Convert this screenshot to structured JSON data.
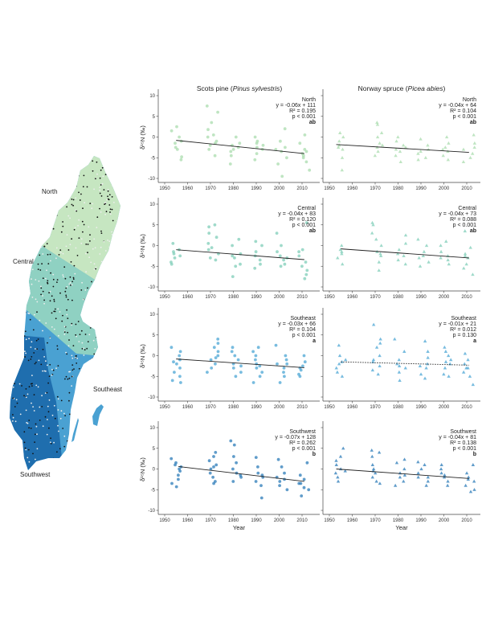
{
  "column_titles": [
    {
      "plain": "Scots pine (",
      "italic": "Pinus sylvestris",
      "close": ")"
    },
    {
      "plain": "Norway spruce (",
      "italic": "Picea abies",
      "close": ")"
    }
  ],
  "map": {
    "region_labels": [
      "North",
      "Central",
      "Southeast",
      "Southwest"
    ],
    "colors": {
      "North": "#c6e6c1",
      "Central": "#8fd1c2",
      "Southeast": "#4aa1d2",
      "Southwest": "#1f6eae"
    }
  },
  "chart_data": [
    {
      "type": "scatter",
      "species": "Scots pine",
      "region": "North",
      "marker": "circle",
      "color": "#a9dcae",
      "ylabel": "δ¹⁵N (‰)",
      "xlabel": "",
      "xlim": [
        1948,
        2015
      ],
      "ylim": [
        -11,
        11
      ],
      "xticks": [
        1950,
        1960,
        1970,
        1980,
        1990,
        2000,
        2010
      ],
      "yticks": [
        -10,
        -5,
        0,
        5,
        10
      ],
      "annotation": [
        "North",
        "y = -0.06x + 111",
        "R² = 0.195",
        "p < 0.001",
        "ab"
      ],
      "fit": {
        "x": [
          1955,
          2011
        ],
        "y": [
          -0.8,
          -4.0
        ],
        "style": "solid"
      },
      "clusters": [
        {
          "year": 1955,
          "y": [
            2.5,
            1.5,
            0,
            -1.5,
            -3,
            -4.8,
            -5.5,
            -1,
            -2.5
          ]
        },
        {
          "year": 1971,
          "y": [
            7.5,
            6,
            3.5,
            1.8,
            0,
            -1,
            -2,
            -3,
            -4.5,
            -1.5,
            0.5
          ]
        },
        {
          "year": 1981,
          "y": [
            0,
            -1.5,
            -2.5,
            -3.5,
            -4.5,
            -6.5,
            -2,
            -3
          ]
        },
        {
          "year": 1991,
          "y": [
            0,
            -1,
            -2,
            -3,
            -4,
            -5.5,
            -2.5,
            -1.5
          ]
        },
        {
          "year": 2001,
          "y": [
            2,
            -1,
            -2.5,
            -3.5,
            -5,
            -6.5,
            -9.5,
            -3
          ]
        },
        {
          "year": 2011,
          "y": [
            0.5,
            -1.5,
            -3,
            -4,
            -5,
            -6,
            -8,
            -3.5,
            -4.5
          ]
        }
      ]
    },
    {
      "type": "scatter",
      "species": "Norway spruce",
      "region": "North",
      "marker": "triangle",
      "color": "#a9dcae",
      "ylabel": "",
      "xlabel": "",
      "xlim": [
        1948,
        2015
      ],
      "ylim": [
        -11,
        11
      ],
      "xticks": [
        1950,
        1960,
        1970,
        1980,
        1990,
        2000,
        2010
      ],
      "yticks": [
        -10,
        -5,
        0,
        5,
        10
      ],
      "annotation": [
        "North",
        "y = -0.04x + 64",
        "R² = 0.104",
        "p < 0.001",
        "ab"
      ],
      "fit": {
        "x": [
          1953,
          2011
        ],
        "y": [
          -1.8,
          -3.7
        ],
        "style": "solid"
      },
      "clusters": [
        {
          "year": 1955,
          "y": [
            0,
            -1,
            -2,
            -3,
            -5,
            -8,
            1,
            -2.5
          ]
        },
        {
          "year": 1971,
          "y": [
            3.5,
            3,
            1,
            0,
            -1.5,
            -2.5,
            -3.5,
            -4.5,
            -2
          ]
        },
        {
          "year": 1981,
          "y": [
            0,
            -1,
            -2.5,
            -3.5,
            -4.5,
            -6,
            -2,
            -3
          ]
        },
        {
          "year": 1991,
          "y": [
            -0.5,
            -2,
            -3,
            -4,
            -5,
            -5.5,
            -3.5
          ]
        },
        {
          "year": 2001,
          "y": [
            0,
            -1.5,
            -2.5,
            -3.5,
            -4.5,
            -5.5,
            -3
          ]
        },
        {
          "year": 2011,
          "y": [
            0.5,
            -1.5,
            -3,
            -4,
            -5,
            -6,
            -2.5
          ]
        }
      ]
    },
    {
      "type": "scatter",
      "species": "Scots pine",
      "region": "Central",
      "marker": "circle",
      "color": "#7fcdb8",
      "ylabel": "δ¹⁵N (‰)",
      "xlabel": "",
      "xlim": [
        1948,
        2015
      ],
      "ylim": [
        -11,
        11
      ],
      "xticks": [
        1950,
        1960,
        1970,
        1980,
        1990,
        2000,
        2010
      ],
      "yticks": [
        -10,
        -5,
        0,
        5,
        10
      ],
      "annotation": [
        "Central",
        "y = -0.04x + 83",
        "R² = 0.120",
        "p < 0.001",
        "ab"
      ],
      "fit": {
        "x": [
          1955,
          2011
        ],
        "y": [
          -1.0,
          -3.4
        ],
        "style": "solid"
      },
      "clusters": [
        {
          "year": 1955,
          "y": [
            0.5,
            -1,
            -2,
            -3,
            -4,
            -4.5,
            -1.5,
            -2.5
          ]
        },
        {
          "year": 1971,
          "y": [
            5,
            4.5,
            3,
            2,
            0.5,
            -1,
            -2,
            -3,
            -3.5,
            -0.5
          ]
        },
        {
          "year": 1981,
          "y": [
            1.5,
            0,
            -2,
            -3,
            -4.5,
            -5,
            -7.5,
            -2.5
          ]
        },
        {
          "year": 1991,
          "y": [
            1,
            0,
            -1.5,
            -2.5,
            -3.5,
            -4.5,
            -5.5
          ]
        },
        {
          "year": 2001,
          "y": [
            3,
            0,
            -1.5,
            -2.5,
            -3.5,
            -4.5,
            -5,
            -3
          ]
        },
        {
          "year": 2011,
          "y": [
            5.5,
            -1,
            -2.5,
            -4,
            -5,
            -6,
            -7,
            -8,
            -1.5
          ]
        }
      ]
    },
    {
      "type": "scatter",
      "species": "Norway spruce",
      "region": "Central",
      "marker": "triangle",
      "color": "#7fcdb8",
      "ylabel": "",
      "xlabel": "",
      "xlim": [
        1948,
        2015
      ],
      "ylim": [
        -11,
        11
      ],
      "xticks": [
        1950,
        1960,
        1970,
        1980,
        1990,
        2000,
        2010
      ],
      "yticks": [
        -10,
        -5,
        0,
        5,
        10
      ],
      "annotation": [
        "Central",
        "y = -0.04x + 73",
        "R² = 0.088",
        "p < 0.001",
        "ab"
      ],
      "fit": {
        "x": [
          1955,
          2011
        ],
        "y": [
          -0.8,
          -3.0
        ],
        "style": "solid"
      },
      "clusters": [
        {
          "year": 1955,
          "y": [
            0,
            -1,
            -2,
            -3,
            -4.5,
            -1.5
          ]
        },
        {
          "year": 1971,
          "y": [
            5.5,
            5,
            3,
            1.5,
            0,
            -1.5,
            -2.5,
            -4,
            -6,
            -2
          ]
        },
        {
          "year": 1981,
          "y": [
            2.5,
            0.5,
            -1,
            -2.5,
            -3.5,
            -4.5,
            -2
          ]
        },
        {
          "year": 1991,
          "y": [
            1.5,
            0,
            -1.5,
            -3,
            -4,
            -5,
            -2.5
          ]
        },
        {
          "year": 2001,
          "y": [
            1,
            0,
            -1.5,
            -2.5,
            -3.5,
            -4.5,
            -3
          ]
        },
        {
          "year": 2011,
          "y": [
            3.5,
            -0.5,
            -2,
            -3,
            -4.5,
            -5.5,
            -7,
            -2.5
          ]
        }
      ]
    },
    {
      "type": "scatter",
      "species": "Scots pine",
      "region": "Southeast",
      "marker": "circle",
      "color": "#4ba5d4",
      "ylabel": "δ¹⁵N (‰)",
      "xlabel": "",
      "xlim": [
        1948,
        2015
      ],
      "ylim": [
        -11,
        11
      ],
      "xticks": [
        1950,
        1960,
        1970,
        1980,
        1990,
        2000,
        2010
      ],
      "yticks": [
        -10,
        -5,
        0,
        5,
        10
      ],
      "annotation": [
        "Southeast",
        "y = -0.03x + 66",
        "R² = 0.104",
        "p < 0.001",
        "a"
      ],
      "fit": {
        "x": [
          1955,
          2011
        ],
        "y": [
          -0.8,
          -2.9
        ],
        "style": "solid"
      },
      "clusters": [
        {
          "year": 1955,
          "y": [
            2,
            1,
            0,
            -1,
            -2,
            -3,
            -4,
            -5,
            -6,
            -6.5,
            -1.5
          ]
        },
        {
          "year": 1971,
          "y": [
            4,
            3,
            2,
            1,
            0,
            -1,
            -2,
            -3,
            -4,
            -0.5
          ]
        },
        {
          "year": 1981,
          "y": [
            2,
            1,
            0,
            -1,
            -2,
            -3,
            -4,
            -5,
            -2.5
          ]
        },
        {
          "year": 1991,
          "y": [
            2,
            1,
            0,
            -1,
            -2,
            -3,
            -4,
            -5,
            -6.5,
            -2.5
          ]
        },
        {
          "year": 2001,
          "y": [
            2.5,
            0,
            -1,
            -2,
            -3,
            -4,
            -5,
            -6.5,
            -2
          ]
        },
        {
          "year": 2011,
          "y": [
            0,
            -1.5,
            -2.5,
            -3.5,
            -4.5,
            -5,
            -3
          ]
        }
      ]
    },
    {
      "type": "scatter",
      "species": "Norway spruce",
      "region": "Southeast",
      "marker": "triangle",
      "color": "#4ba5d4",
      "ylabel": "",
      "xlabel": "",
      "xlim": [
        1948,
        2015
      ],
      "ylim": [
        -11,
        11
      ],
      "xticks": [
        1950,
        1960,
        1970,
        1980,
        1990,
        2000,
        2010
      ],
      "yticks": [
        -10,
        -5,
        0,
        5,
        10
      ],
      "annotation": [
        "Southeast",
        "y = -0.01x + 21",
        "R² = 0.012",
        "p = 0.130",
        "a"
      ],
      "fit": {
        "x": [
          1955,
          2011
        ],
        "y": [
          -1.5,
          -2.3
        ],
        "style": "dotted"
      },
      "clusters": [
        {
          "year": 1955,
          "y": [
            2.5,
            0,
            -1,
            -2,
            -3,
            -4,
            -5,
            -1.5
          ]
        },
        {
          "year": 1971,
          "y": [
            7.5,
            4,
            3,
            2,
            0,
            -1.5,
            -2.5,
            -3.5,
            -4.5,
            -1
          ]
        },
        {
          "year": 1981,
          "y": [
            4,
            1,
            -1,
            -2,
            -3,
            -4,
            -6,
            -2.5
          ]
        },
        {
          "year": 1991,
          "y": [
            3.5,
            1,
            -0.5,
            -2,
            -3,
            -4.5,
            -5.5,
            -2.5
          ]
        },
        {
          "year": 2001,
          "y": [
            2,
            1,
            0,
            -1,
            -2,
            -3,
            -4.5,
            -5,
            -1.5
          ]
        },
        {
          "year": 2011,
          "y": [
            0.5,
            -1,
            -2,
            -3,
            -4,
            -5,
            -7,
            -3
          ]
        }
      ]
    },
    {
      "type": "scatter",
      "species": "Scots pine",
      "region": "Southwest",
      "marker": "circle",
      "color": "#2b7bb8",
      "ylabel": "δ¹⁵N (‰)",
      "xlabel": "Year",
      "xlim": [
        1948,
        2015
      ],
      "ylim": [
        -11,
        11
      ],
      "xticks": [
        1950,
        1960,
        1970,
        1980,
        1990,
        2000,
        2010
      ],
      "yticks": [
        -10,
        -5,
        0,
        5,
        10
      ],
      "annotation": [
        "Southwest",
        "y = -0.07x + 128",
        "R² = 0.262",
        "p < 0.001",
        "b"
      ],
      "fit": {
        "x": [
          1956,
          2011
        ],
        "y": [
          0.6,
          -3.0
        ],
        "style": "solid"
      },
      "clusters": [
        {
          "year": 1955,
          "y": [
            2.5,
            1.5,
            1,
            0,
            -0.5,
            -1.5,
            -2.5,
            -3.5,
            -4.3,
            0.5
          ]
        },
        {
          "year": 1971,
          "y": [
            4,
            3,
            2,
            1,
            0,
            -1,
            -2,
            -3,
            -3.5,
            0.5
          ]
        },
        {
          "year": 1981,
          "y": [
            6.8,
            5.8,
            3,
            1.5,
            0,
            -1,
            -2,
            -3,
            -1.5
          ]
        },
        {
          "year": 1991,
          "y": [
            2.8,
            0.5,
            -1,
            -2,
            -3,
            -4,
            -7,
            -1.5
          ]
        },
        {
          "year": 2001,
          "y": [
            2.3,
            0.5,
            -1,
            -2,
            -3,
            -4,
            -5,
            -2.5
          ]
        },
        {
          "year": 2011,
          "y": [
            1.5,
            -1.5,
            -2.5,
            -3.5,
            -4.5,
            -5,
            -6.5,
            -3.5
          ]
        }
      ]
    },
    {
      "type": "scatter",
      "species": "Norway spruce",
      "region": "Southwest",
      "marker": "triangle",
      "color": "#2b7bb8",
      "ylabel": "",
      "xlabel": "Year",
      "xlim": [
        1948,
        2015
      ],
      "ylim": [
        -11,
        11
      ],
      "xticks": [
        1950,
        1960,
        1970,
        1980,
        1990,
        2000,
        2010
      ],
      "yticks": [
        -10,
        -5,
        0,
        5,
        10
      ],
      "annotation": [
        "Southwest",
        "y = -0.04x + 81",
        "R² = 0.138",
        "p < 0.001",
        "b"
      ],
      "fit": {
        "x": [
          1953,
          2011
        ],
        "y": [
          0.0,
          -2.3
        ],
        "style": "solid"
      },
      "clusters": [
        {
          "year": 1955,
          "y": [
            5,
            3,
            2,
            1,
            0,
            -1,
            -2,
            -3,
            -0.5
          ]
        },
        {
          "year": 1971,
          "y": [
            4.5,
            4,
            3,
            1,
            0,
            -1,
            -2,
            -3,
            -3.5,
            -0.5
          ]
        },
        {
          "year": 1981,
          "y": [
            2.3,
            1.5,
            0,
            -1,
            -2,
            -3,
            -4,
            -1.5
          ]
        },
        {
          "year": 1991,
          "y": [
            1.7,
            1,
            0,
            -1,
            -2,
            -3,
            -4,
            -2
          ]
        },
        {
          "year": 2001,
          "y": [
            1,
            0,
            -1,
            -2,
            -3,
            -4,
            -1.5
          ]
        },
        {
          "year": 2011,
          "y": [
            1,
            -1,
            -2,
            -3,
            -4,
            -5,
            -5.5,
            -2.5
          ]
        }
      ]
    }
  ]
}
